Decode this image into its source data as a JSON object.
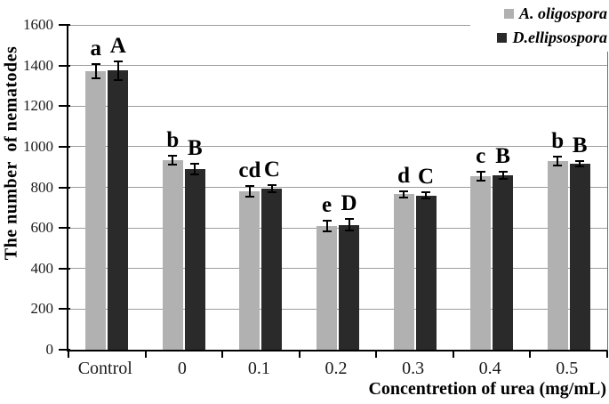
{
  "chart_data": {
    "type": "bar",
    "title": "",
    "categories": [
      "Control",
      "0",
      "0.1",
      "0.2",
      "0.3",
      "0.4",
      "0.5"
    ],
    "series": [
      {
        "name": "A. oligospora",
        "color": "#b1b1b1",
        "values": [
          1370,
          935,
          780,
          610,
          765,
          855,
          930
        ],
        "errors": [
          35,
          22,
          25,
          25,
          14,
          22,
          22
        ],
        "sig_letters": [
          "a",
          "b",
          "cd",
          "e",
          "d",
          "c",
          "b"
        ]
      },
      {
        "name": "D.ellipsospora",
        "color": "#2a2a2a",
        "values": [
          1375,
          890,
          795,
          615,
          760,
          860,
          915
        ],
        "errors": [
          45,
          28,
          18,
          28,
          16,
          18,
          14
        ],
        "sig_letters": [
          "A",
          "B",
          "C",
          "D",
          "C",
          "B",
          "B"
        ]
      }
    ],
    "xlabel": "Concentretion of urea (mg/mL)",
    "ylabel": "The number  of nematodes",
    "ylim": [
      0,
      1600
    ],
    "ytick_step": 200,
    "grid": true,
    "error_bars": true,
    "legend_position": "top-right",
    "grid_color": "#9c9c9c",
    "axis_color": "#000000"
  }
}
